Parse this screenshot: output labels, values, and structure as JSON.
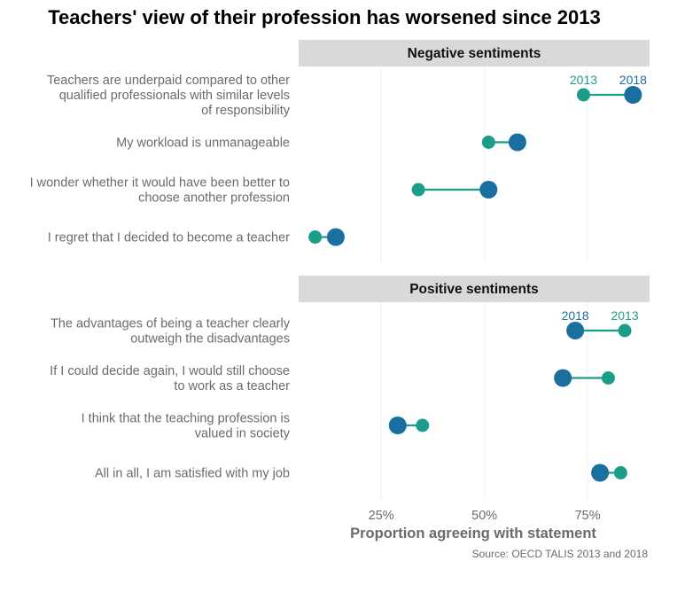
{
  "chart_data": {
    "type": "dumbbell",
    "title": "Teachers' view of their profession has worsened since 2013",
    "xlabel": "Proportion agreeing with statement",
    "xlim": [
      5,
      90
    ],
    "xticks": [
      25,
      50,
      75
    ],
    "xtick_labels": [
      "25%",
      "50%",
      "75%"
    ],
    "grid": true,
    "source": "Source: OECD TALIS 2013 and 2018",
    "colors": {
      "y2013": "#1a9e8a",
      "y2018": "#1a6f9e",
      "strip": "#d9d9d9"
    },
    "panels": [
      {
        "name": "Negative sentiments",
        "series_labels": {
          "y2013": "2013",
          "y2018": "2018"
        },
        "items": [
          {
            "label": [
              "Teachers are underpaid compared to other",
              "qualified professionals with similar levels",
              "of responsibility"
            ],
            "y2013": 74,
            "y2018": 86
          },
          {
            "label": [
              "My workload is unmanageable"
            ],
            "y2013": 51,
            "y2018": 58
          },
          {
            "label": [
              "I wonder whether it would have been better to",
              "choose another profession"
            ],
            "y2013": 34,
            "y2018": 51
          },
          {
            "label": [
              "I regret that I decided to become a teacher"
            ],
            "y2013": 9,
            "y2018": 14
          }
        ]
      },
      {
        "name": "Positive sentiments",
        "series_labels": {
          "y2013": "2013",
          "y2018": "2018"
        },
        "items": [
          {
            "label": [
              "The advantages of being a teacher clearly",
              "outweigh the disadvantages"
            ],
            "y2013": 84,
            "y2018": 72
          },
          {
            "label": [
              "If I could decide again, I would still choose",
              "to work as a teacher"
            ],
            "y2013": 80,
            "y2018": 69
          },
          {
            "label": [
              "I think that the teaching profession is",
              "valued in society"
            ],
            "y2013": 35,
            "y2018": 29
          },
          {
            "label": [
              "All in all, I am satisfied with my job"
            ],
            "y2013": 83,
            "y2018": 78
          }
        ]
      }
    ]
  }
}
